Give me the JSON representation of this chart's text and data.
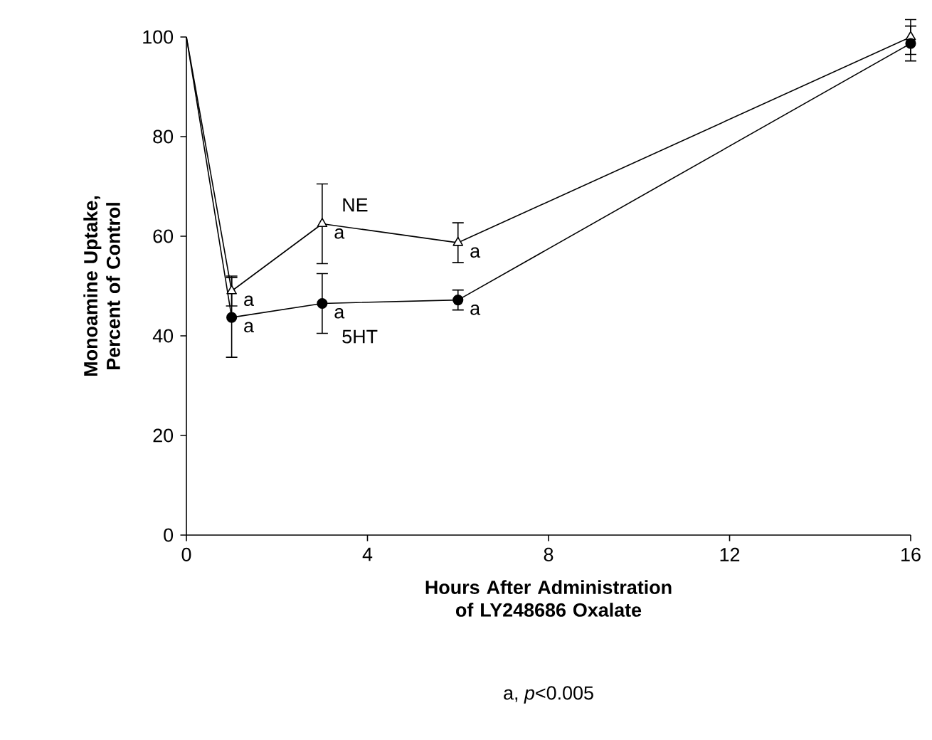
{
  "chart_data": {
    "type": "line",
    "xlabel": "Hours After Administration of LY248686 Oxalate",
    "ylabel": "Monoamine Uptake, Percent of Control",
    "x": [
      0,
      1,
      3,
      6,
      16
    ],
    "series": [
      {
        "name": "NE",
        "color": "#000000",
        "marker": "triangle",
        "values": [
          100,
          49,
          62.5,
          58.7,
          100
        ],
        "errors": [
          null,
          3,
          8,
          4,
          3.5
        ]
      },
      {
        "name": "5HT",
        "color": "#000000",
        "marker": "circle",
        "values": [
          100,
          43.7,
          46.5,
          47.2,
          98.7
        ],
        "errors": [
          null,
          8,
          6,
          2,
          3.5
        ]
      }
    ],
    "xlim": [
      0,
      16
    ],
    "ylim": [
      0,
      100
    ],
    "xticks": [
      0,
      4,
      8,
      12,
      16
    ],
    "yticks": [
      0,
      20,
      40,
      60,
      80,
      100
    ],
    "grid": false,
    "legend": false,
    "annotations": [
      {
        "text": "a",
        "x": 1,
        "y": 49
      },
      {
        "text": "a",
        "x": 3,
        "y": 62.5
      },
      {
        "text": "a",
        "x": 6,
        "y": 58.7
      },
      {
        "text": "a",
        "x": 1,
        "y": 43.7
      },
      {
        "text": "a",
        "x": 3,
        "y": 46.5
      },
      {
        "text": "a",
        "x": 6,
        "y": 47.2
      },
      "a, *p*<0.005"
    ]
  }
}
